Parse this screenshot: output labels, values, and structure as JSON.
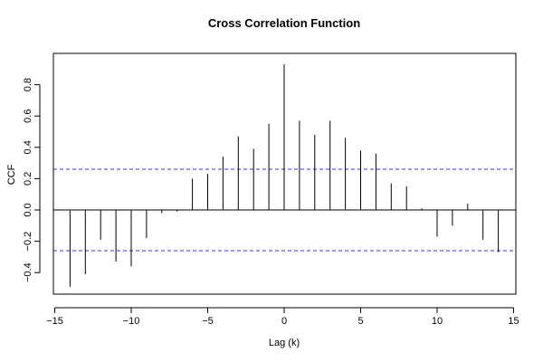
{
  "chart_data": {
    "type": "bar",
    "title": "Cross Correlation Function",
    "xlabel": "Lag (k)",
    "ylabel": "CCF",
    "xlim": [
      -15,
      15
    ],
    "ylim": [
      -0.5,
      0.95
    ],
    "x_ticks": [
      -15,
      -10,
      -5,
      0,
      5,
      10,
      15
    ],
    "x_tick_labels": [
      "−15",
      "−10",
      "−5",
      "0",
      "5",
      "10",
      "15"
    ],
    "y_ticks": [
      -0.4,
      -0.2,
      0.0,
      0.2,
      0.4,
      0.6,
      0.8
    ],
    "y_tick_labels": [
      "−0.4",
      "−0.2",
      "0.0",
      "0.2",
      "0.4",
      "0.6",
      "0.8"
    ],
    "lags": [
      -14,
      -13,
      -12,
      -11,
      -10,
      -9,
      -8,
      -7,
      -6,
      -5,
      -4,
      -3,
      -2,
      -1,
      0,
      1,
      2,
      3,
      4,
      5,
      6,
      7,
      8,
      9,
      10,
      11,
      12,
      13,
      14
    ],
    "values": [
      -0.49,
      -0.41,
      -0.19,
      -0.33,
      -0.36,
      -0.18,
      -0.02,
      -0.01,
      0.2,
      0.23,
      0.34,
      0.47,
      0.39,
      0.55,
      0.93,
      0.57,
      0.48,
      0.57,
      0.46,
      0.38,
      0.36,
      0.17,
      0.15,
      0.01,
      -0.17,
      -0.1,
      0.04,
      -0.19,
      -0.27
    ],
    "confidence_bounds": [
      0.26,
      -0.26
    ],
    "confidence_color": "#3333ff",
    "spike_color": "#000000",
    "zero_line": true,
    "grid": false
  }
}
